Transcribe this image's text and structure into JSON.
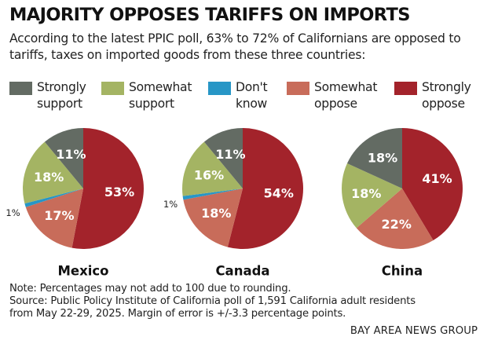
{
  "title": "MAJORITY OPPOSES TARIFFS ON IMPORTS",
  "subtitle": "According to the latest PPIC poll, 63% to 72% of Californians are opposed to tariffs, taxes on imported goods from these three countries:",
  "legend": [
    {
      "line1": "Strongly",
      "line2": "support",
      "color": "#636b63"
    },
    {
      "line1": "Somewhat",
      "line2": "support",
      "color": "#a4b463"
    },
    {
      "line1": "Don't",
      "line2": "know",
      "color": "#2796c6"
    },
    {
      "line1": "Somewhat",
      "line2": "oppose",
      "color": "#c86c5a"
    },
    {
      "line1": "Strongly",
      "line2": "oppose",
      "color": "#a3232b"
    }
  ],
  "chart_data": [
    {
      "type": "pie",
      "title": "Mexico",
      "categories": [
        "Strongly oppose",
        "Somewhat oppose",
        "Don't know",
        "Somewhat support",
        "Strongly support"
      ],
      "values": [
        53,
        17,
        1,
        18,
        11
      ],
      "labels": [
        "53%",
        "17%",
        "1%",
        "18%",
        "11%"
      ],
      "colors": [
        "#a3232b",
        "#c86c5a",
        "#2796c6",
        "#a4b463",
        "#636b63"
      ]
    },
    {
      "type": "pie",
      "title": "Canada",
      "categories": [
        "Strongly oppose",
        "Somewhat oppose",
        "Don't know",
        "Somewhat support",
        "Strongly support"
      ],
      "values": [
        54,
        18,
        1,
        16,
        11
      ],
      "labels": [
        "54%",
        "18%",
        "1%",
        "16%",
        "11%"
      ],
      "colors": [
        "#a3232b",
        "#c86c5a",
        "#2796c6",
        "#a4b463",
        "#636b63"
      ]
    },
    {
      "type": "pie",
      "title": "China",
      "categories": [
        "Strongly oppose",
        "Somewhat oppose",
        "Somewhat support",
        "Strongly support"
      ],
      "values": [
        41,
        22,
        18,
        18
      ],
      "labels": [
        "41%",
        "22%",
        "18%",
        "18%"
      ],
      "colors": [
        "#a3232b",
        "#c86c5a",
        "#a4b463",
        "#636b63"
      ]
    }
  ],
  "note_line1": "Note: Percentages may not add to 100 due to rounding.",
  "note_line2": "Source: Public Policy Institute of California poll of 1,591 California adult residents",
  "note_line3": "from May 22-29, 2025. Margin of error is +/-3.3 percentage points.",
  "credit": "BAY AREA NEWS GROUP"
}
